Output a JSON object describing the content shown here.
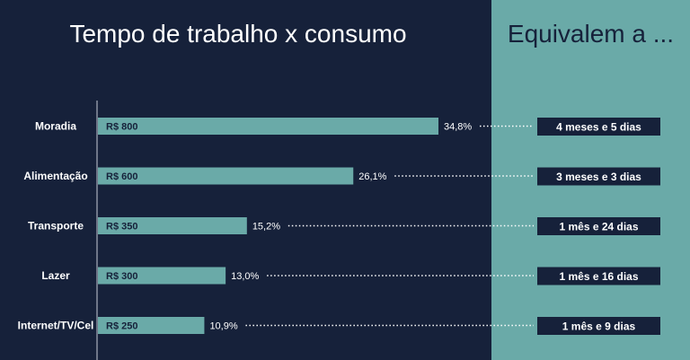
{
  "title": "Tempo de trabalho x consumo",
  "equiv_title": "Equivalem a ...",
  "colors": {
    "background": "#16213a",
    "right_panel": "#6aaaa8",
    "bar": "#6aaaa8",
    "box": "#16213a",
    "text": "#ffffff"
  },
  "chart_data": {
    "type": "bar",
    "orientation": "horizontal",
    "categories": [
      "Moradia",
      "Alimentação",
      "Transporte",
      "Lazer",
      "Internet/TV/Cel"
    ],
    "values": [
      800,
      600,
      350,
      300,
      250
    ],
    "value_labels": [
      "R$ 800",
      "R$ 600",
      "R$ 350",
      "R$ 300",
      "R$ 250"
    ],
    "percent_labels": [
      "34,8%",
      "26,1%",
      "15,2%",
      "13,0%",
      "10,9%"
    ],
    "equivalents": [
      "4 meses e 5 dias",
      "3 meses e 3 dias",
      "1 mês e 24 dias",
      "1 mês e 16 dias",
      "1 mês e 9 dias"
    ],
    "xlim": [
      0,
      1100
    ]
  }
}
